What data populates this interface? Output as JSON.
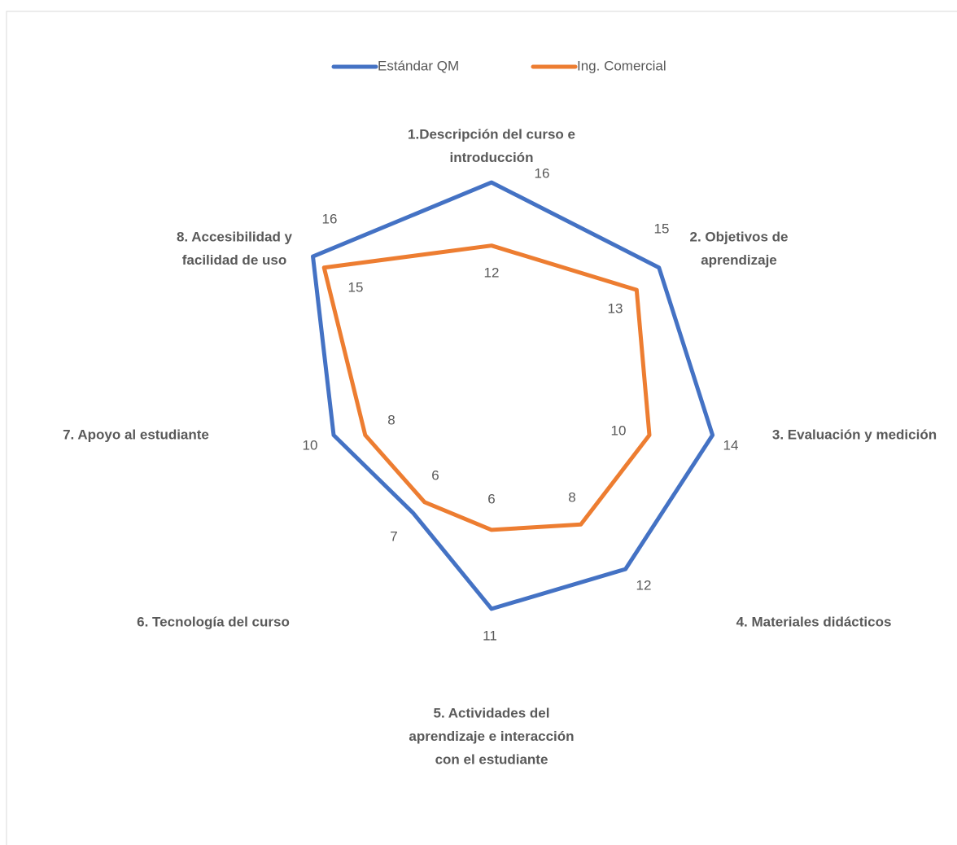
{
  "chart_data": {
    "type": "radar",
    "categories": [
      [
        "1.Descripción del curso e",
        "introducción"
      ],
      [
        "2. Objetivos de",
        "aprendizaje"
      ],
      [
        "3. Evaluación y medición"
      ],
      [
        "4. Materiales didácticos"
      ],
      [
        "5. Actividades del",
        "aprendizaje e interacción",
        "con el estudiante"
      ],
      [
        "6. Tecnología del curso"
      ],
      [
        "7. Apoyo al estudiante"
      ],
      [
        "8. Accesibilidad y",
        "facilidad de uso"
      ]
    ],
    "series": [
      {
        "name": "Estándar QM",
        "color": "#4472c4",
        "values": [
          16,
          15,
          14,
          12,
          11,
          7,
          10,
          16
        ]
      },
      {
        "name": "Ing. Comercial",
        "color": "#ed7d31",
        "values": [
          12,
          13,
          10,
          8,
          6,
          6,
          8,
          15
        ]
      }
    ],
    "ylim": [
      0,
      16
    ],
    "legend": "top"
  }
}
